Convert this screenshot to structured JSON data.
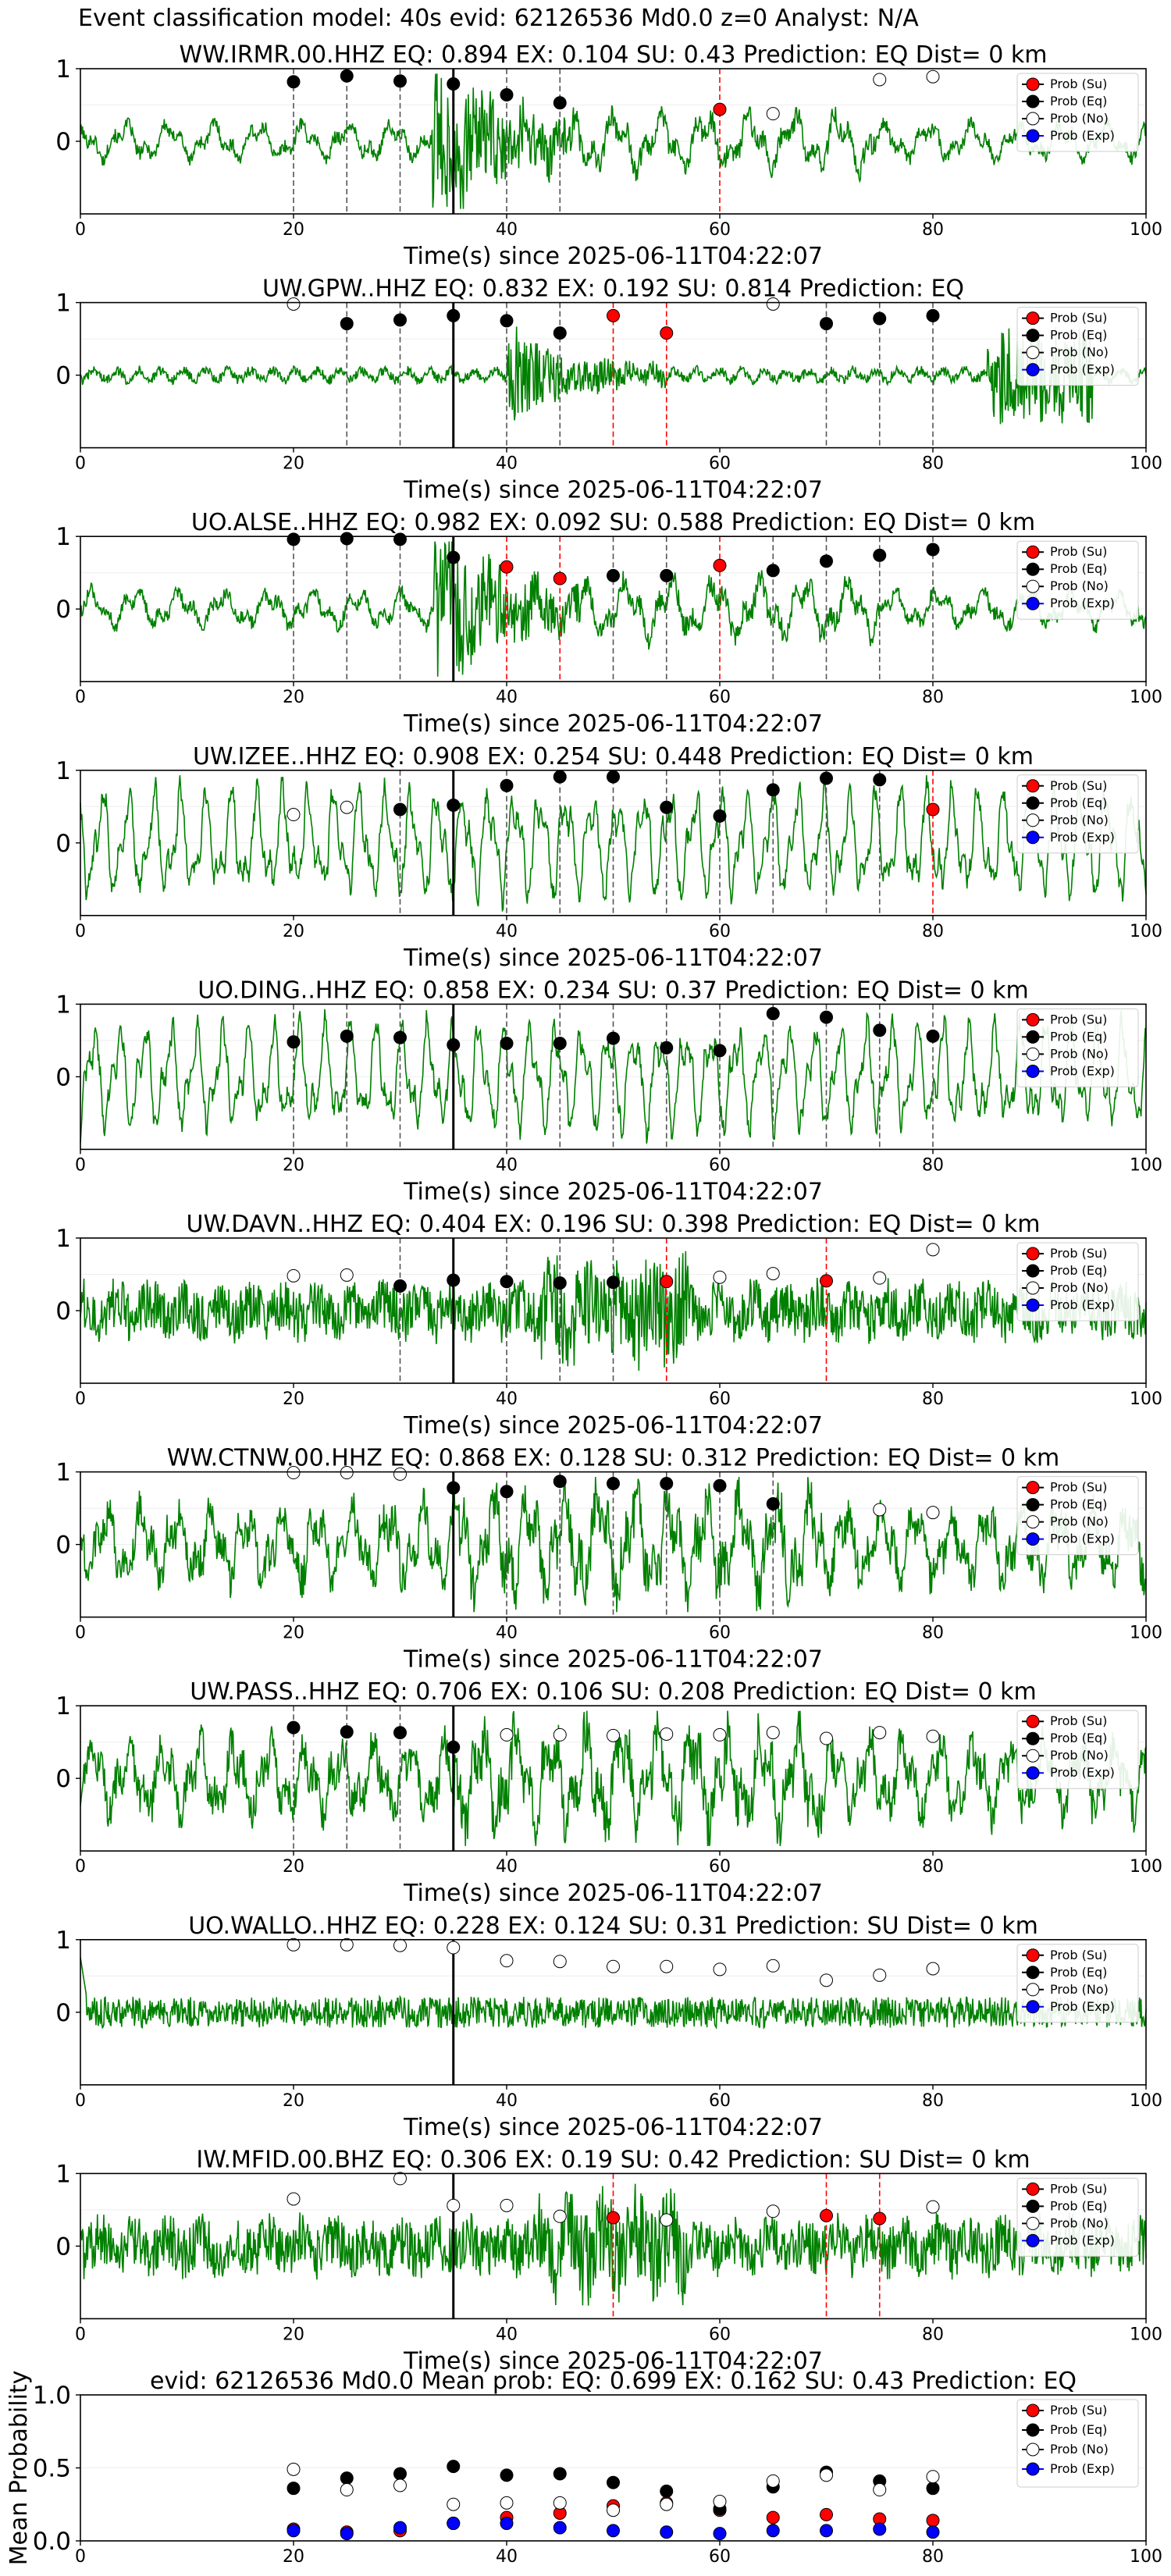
{
  "suptitle": "Event classification model: 40s evid: 62126536 Md0.0 z=0 Analyst: N/A",
  "colors": {
    "su": "#ff0000",
    "eq": "#000000",
    "no": "#ffffff",
    "exp": "#0000ff",
    "trace": "#008000",
    "dash_eq": "#555555",
    "dash_su": "#ff0000",
    "onset": "#000000"
  },
  "legend": [
    "Prob (Su)",
    "Prob (Eq)",
    "Prob (No)",
    "Prob (Exp)"
  ],
  "chart_data": [
    {
      "type": "line",
      "title": "WW.IRMR.00.HHZ   EQ: 0.894  EX: 0.104  SU: 0.43   Prediction: EQ    Dist= 0 km",
      "xlabel": "Time(s) since 2025-06-11T04:22:07",
      "ylabel": "",
      "xlim": [
        0,
        100
      ],
      "ylim": [
        -1,
        1
      ],
      "xticks": [
        0,
        20,
        40,
        60,
        80,
        100
      ],
      "yticks": [
        0,
        1
      ],
      "legend_position": "top-right",
      "onset": 35,
      "trace_style": "mixed_burst",
      "points": [
        {
          "x": 20,
          "p": 0.82,
          "c": "eq"
        },
        {
          "x": 25,
          "p": 0.9,
          "c": "eq"
        },
        {
          "x": 30,
          "p": 0.83,
          "c": "eq"
        },
        {
          "x": 35,
          "p": 0.79,
          "c": "eq"
        },
        {
          "x": 40,
          "p": 0.64,
          "c": "eq"
        },
        {
          "x": 45,
          "p": 0.53,
          "c": "eq"
        },
        {
          "x": 60,
          "p": 0.44,
          "c": "su"
        },
        {
          "x": 65,
          "p": 0.38,
          "c": "no"
        },
        {
          "x": 75,
          "p": 0.85,
          "c": "no"
        },
        {
          "x": 80,
          "p": 0.89,
          "c": "no"
        }
      ]
    },
    {
      "type": "line",
      "title": "UW.GPW..HHZ   EQ: 0.832  EX: 0.192  SU: 0.814   Prediction: EQ",
      "xlabel": "Time(s) since 2025-06-11T04:22:07",
      "ylabel": "",
      "xlim": [
        0,
        100
      ],
      "ylim": [
        -1,
        1
      ],
      "xticks": [
        0,
        20,
        40,
        60,
        80,
        100
      ],
      "yticks": [
        0,
        1
      ],
      "legend_position": "top-right",
      "onset": 35,
      "trace_style": "quiet_burst",
      "points": [
        {
          "x": 20,
          "p": 0.98,
          "c": "no"
        },
        {
          "x": 25,
          "p": 0.71,
          "c": "eq"
        },
        {
          "x": 30,
          "p": 0.76,
          "c": "eq"
        },
        {
          "x": 35,
          "p": 0.82,
          "c": "eq"
        },
        {
          "x": 40,
          "p": 0.75,
          "c": "eq"
        },
        {
          "x": 45,
          "p": 0.58,
          "c": "eq"
        },
        {
          "x": 50,
          "p": 0.82,
          "c": "su"
        },
        {
          "x": 55,
          "p": 0.58,
          "c": "su"
        },
        {
          "x": 65,
          "p": 0.98,
          "c": "no"
        },
        {
          "x": 70,
          "p": 0.71,
          "c": "eq"
        },
        {
          "x": 75,
          "p": 0.78,
          "c": "eq"
        },
        {
          "x": 80,
          "p": 0.82,
          "c": "eq"
        }
      ]
    },
    {
      "type": "line",
      "title": "UO.ALSE..HHZ   EQ: 0.982  EX: 0.092  SU: 0.588   Prediction: EQ    Dist= 0 km",
      "xlabel": "Time(s) since 2025-06-11T04:22:07",
      "ylabel": "",
      "xlim": [
        0,
        100
      ],
      "ylim": [
        -1,
        1
      ],
      "xticks": [
        0,
        20,
        40,
        60,
        80,
        100
      ],
      "yticks": [
        0,
        1
      ],
      "legend_position": "top-right",
      "onset": 35,
      "trace_style": "mixed_burst",
      "points": [
        {
          "x": 20,
          "p": 0.96,
          "c": "eq"
        },
        {
          "x": 25,
          "p": 0.97,
          "c": "eq"
        },
        {
          "x": 30,
          "p": 0.96,
          "c": "eq"
        },
        {
          "x": 35,
          "p": 0.71,
          "c": "eq"
        },
        {
          "x": 40,
          "p": 0.58,
          "c": "su"
        },
        {
          "x": 45,
          "p": 0.42,
          "c": "su"
        },
        {
          "x": 50,
          "p": 0.46,
          "c": "eq"
        },
        {
          "x": 55,
          "p": 0.46,
          "c": "eq"
        },
        {
          "x": 60,
          "p": 0.6,
          "c": "su"
        },
        {
          "x": 65,
          "p": 0.53,
          "c": "eq"
        },
        {
          "x": 70,
          "p": 0.66,
          "c": "eq"
        },
        {
          "x": 75,
          "p": 0.74,
          "c": "eq"
        },
        {
          "x": 80,
          "p": 0.82,
          "c": "eq"
        }
      ]
    },
    {
      "type": "line",
      "title": "UW.IZEE..HHZ   EQ: 0.908  EX: 0.254  SU: 0.448   Prediction: EQ    Dist= 0 km",
      "xlabel": "Time(s) since 2025-06-11T04:22:07",
      "ylabel": "",
      "xlim": [
        0,
        100
      ],
      "ylim": [
        -1,
        1
      ],
      "xticks": [
        0,
        20,
        40,
        60,
        80,
        100
      ],
      "yticks": [
        0,
        1
      ],
      "legend_position": "top-right",
      "onset": 35,
      "trace_style": "slow",
      "points": [
        {
          "x": 20,
          "p": 0.39,
          "c": "no"
        },
        {
          "x": 25,
          "p": 0.49,
          "c": "no"
        },
        {
          "x": 30,
          "p": 0.46,
          "c": "eq"
        },
        {
          "x": 35,
          "p": 0.52,
          "c": "eq"
        },
        {
          "x": 40,
          "p": 0.79,
          "c": "eq"
        },
        {
          "x": 45,
          "p": 0.91,
          "c": "eq"
        },
        {
          "x": 50,
          "p": 0.91,
          "c": "eq"
        },
        {
          "x": 55,
          "p": 0.49,
          "c": "eq"
        },
        {
          "x": 60,
          "p": 0.37,
          "c": "eq"
        },
        {
          "x": 65,
          "p": 0.73,
          "c": "eq"
        },
        {
          "x": 70,
          "p": 0.89,
          "c": "eq"
        },
        {
          "x": 75,
          "p": 0.87,
          "c": "eq"
        },
        {
          "x": 80,
          "p": 0.46,
          "c": "su"
        }
      ]
    },
    {
      "type": "line",
      "title": "UO.DING..HHZ   EQ: 0.858  EX: 0.234  SU: 0.37   Prediction: EQ    Dist= 0 km",
      "xlabel": "Time(s) since 2025-06-11T04:22:07",
      "ylabel": "",
      "xlim": [
        0,
        100
      ],
      "ylim": [
        -1,
        1
      ],
      "xticks": [
        0,
        20,
        40,
        60,
        80,
        100
      ],
      "yticks": [
        0,
        1
      ],
      "legend_position": "top-right",
      "onset": 35,
      "trace_style": "slow",
      "points": [
        {
          "x": 20,
          "p": 0.48,
          "c": "eq"
        },
        {
          "x": 25,
          "p": 0.56,
          "c": "eq"
        },
        {
          "x": 30,
          "p": 0.54,
          "c": "eq"
        },
        {
          "x": 35,
          "p": 0.44,
          "c": "eq"
        },
        {
          "x": 40,
          "p": 0.46,
          "c": "eq"
        },
        {
          "x": 45,
          "p": 0.46,
          "c": "eq"
        },
        {
          "x": 50,
          "p": 0.53,
          "c": "eq"
        },
        {
          "x": 55,
          "p": 0.4,
          "c": "eq"
        },
        {
          "x": 60,
          "p": 0.36,
          "c": "eq"
        },
        {
          "x": 65,
          "p": 0.87,
          "c": "eq"
        },
        {
          "x": 70,
          "p": 0.82,
          "c": "eq"
        },
        {
          "x": 75,
          "p": 0.64,
          "c": "eq"
        },
        {
          "x": 80,
          "p": 0.56,
          "c": "eq"
        }
      ]
    },
    {
      "type": "line",
      "title": "UW.DAVN..HHZ   EQ: 0.404  EX: 0.196  SU: 0.398   Prediction: EQ    Dist= 0 km",
      "xlabel": "Time(s) since 2025-06-11T04:22:07",
      "ylabel": "",
      "xlim": [
        0,
        100
      ],
      "ylim": [
        -1,
        1
      ],
      "xticks": [
        0,
        20,
        40,
        60,
        80,
        100
      ],
      "yticks": [
        0,
        1
      ],
      "legend_position": "top-right",
      "onset": 35,
      "trace_style": "noise",
      "points": [
        {
          "x": 20,
          "p": 0.48,
          "c": "no"
        },
        {
          "x": 25,
          "p": 0.49,
          "c": "no"
        },
        {
          "x": 30,
          "p": 0.34,
          "c": "eq"
        },
        {
          "x": 35,
          "p": 0.42,
          "c": "eq"
        },
        {
          "x": 40,
          "p": 0.4,
          "c": "eq"
        },
        {
          "x": 45,
          "p": 0.38,
          "c": "eq"
        },
        {
          "x": 50,
          "p": 0.39,
          "c": "eq"
        },
        {
          "x": 55,
          "p": 0.4,
          "c": "su"
        },
        {
          "x": 60,
          "p": 0.46,
          "c": "no"
        },
        {
          "x": 65,
          "p": 0.51,
          "c": "no"
        },
        {
          "x": 70,
          "p": 0.41,
          "c": "su"
        },
        {
          "x": 75,
          "p": 0.45,
          "c": "no"
        },
        {
          "x": 80,
          "p": 0.84,
          "c": "no"
        }
      ]
    },
    {
      "type": "line",
      "title": "WW.CTNW.00.HHZ   EQ: 0.868  EX: 0.128  SU: 0.312   Prediction: EQ    Dist= 0 km",
      "xlabel": "Time(s) since 2025-06-11T04:22:07",
      "ylabel": "",
      "xlim": [
        0,
        100
      ],
      "ylim": [
        -1,
        1
      ],
      "xticks": [
        0,
        20,
        40,
        60,
        80,
        100
      ],
      "yticks": [
        0,
        1
      ],
      "legend_position": "top-right",
      "onset": 35,
      "trace_style": "mixed",
      "points": [
        {
          "x": 20,
          "p": 0.99,
          "c": "no"
        },
        {
          "x": 25,
          "p": 0.99,
          "c": "no"
        },
        {
          "x": 30,
          "p": 0.97,
          "c": "no"
        },
        {
          "x": 35,
          "p": 0.78,
          "c": "eq"
        },
        {
          "x": 40,
          "p": 0.73,
          "c": "eq"
        },
        {
          "x": 45,
          "p": 0.87,
          "c": "eq"
        },
        {
          "x": 50,
          "p": 0.84,
          "c": "eq"
        },
        {
          "x": 55,
          "p": 0.84,
          "c": "eq"
        },
        {
          "x": 60,
          "p": 0.81,
          "c": "eq"
        },
        {
          "x": 65,
          "p": 0.56,
          "c": "eq"
        },
        {
          "x": 75,
          "p": 0.48,
          "c": "no"
        },
        {
          "x": 80,
          "p": 0.44,
          "c": "no"
        }
      ]
    },
    {
      "type": "line",
      "title": "UW.PASS..HHZ   EQ: 0.706  EX: 0.106  SU: 0.208   Prediction: EQ    Dist= 0 km",
      "xlabel": "Time(s) since 2025-06-11T04:22:07",
      "ylabel": "",
      "xlim": [
        0,
        100
      ],
      "ylim": [
        -1,
        1
      ],
      "xticks": [
        0,
        20,
        40,
        60,
        80,
        100
      ],
      "yticks": [
        0,
        1
      ],
      "legend_position": "top-right",
      "onset": 35,
      "trace_style": "mixed",
      "points": [
        {
          "x": 20,
          "p": 0.7,
          "c": "eq"
        },
        {
          "x": 25,
          "p": 0.64,
          "c": "eq"
        },
        {
          "x": 30,
          "p": 0.63,
          "c": "eq"
        },
        {
          "x": 35,
          "p": 0.43,
          "c": "eq"
        },
        {
          "x": 40,
          "p": 0.6,
          "c": "no"
        },
        {
          "x": 45,
          "p": 0.6,
          "c": "no"
        },
        {
          "x": 50,
          "p": 0.59,
          "c": "no"
        },
        {
          "x": 55,
          "p": 0.61,
          "c": "no"
        },
        {
          "x": 60,
          "p": 0.6,
          "c": "no"
        },
        {
          "x": 65,
          "p": 0.63,
          "c": "no"
        },
        {
          "x": 70,
          "p": 0.55,
          "c": "no"
        },
        {
          "x": 75,
          "p": 0.63,
          "c": "no"
        },
        {
          "x": 80,
          "p": 0.58,
          "c": "no"
        }
      ]
    },
    {
      "type": "line",
      "title": "UO.WALLO..HHZ   EQ: 0.228  EX: 0.124  SU: 0.31   Prediction: SU    Dist= 0 km",
      "xlabel": "Time(s) since 2025-06-11T04:22:07",
      "ylabel": "",
      "xlim": [
        0,
        100
      ],
      "ylim": [
        -1,
        1
      ],
      "xticks": [
        0,
        20,
        40,
        60,
        80,
        100
      ],
      "yticks": [
        0,
        1
      ],
      "legend_position": "top-right",
      "onset": 35,
      "trace_style": "lownoise",
      "points": [
        {
          "x": 20,
          "p": 0.93,
          "c": "no"
        },
        {
          "x": 25,
          "p": 0.93,
          "c": "no"
        },
        {
          "x": 30,
          "p": 0.92,
          "c": "no"
        },
        {
          "x": 35,
          "p": 0.89,
          "c": "no"
        },
        {
          "x": 40,
          "p": 0.71,
          "c": "no"
        },
        {
          "x": 45,
          "p": 0.7,
          "c": "no"
        },
        {
          "x": 50,
          "p": 0.63,
          "c": "no"
        },
        {
          "x": 55,
          "p": 0.63,
          "c": "no"
        },
        {
          "x": 60,
          "p": 0.59,
          "c": "no"
        },
        {
          "x": 65,
          "p": 0.64,
          "c": "no"
        },
        {
          "x": 70,
          "p": 0.44,
          "c": "no"
        },
        {
          "x": 75,
          "p": 0.51,
          "c": "no"
        },
        {
          "x": 80,
          "p": 0.6,
          "c": "no"
        }
      ]
    },
    {
      "type": "line",
      "title": "IW.MFID.00.BHZ   EQ: 0.306  EX: 0.19  SU: 0.42   Prediction: SU    Dist= 0 km",
      "xlabel": "Time(s) since 2025-06-11T04:22:07",
      "ylabel": "",
      "xlim": [
        0,
        100
      ],
      "ylim": [
        -1,
        1
      ],
      "xticks": [
        0,
        20,
        40,
        60,
        80,
        100
      ],
      "yticks": [
        0,
        1
      ],
      "legend_position": "top-right",
      "onset": 35,
      "trace_style": "noise",
      "points": [
        {
          "x": 20,
          "p": 0.65,
          "c": "no"
        },
        {
          "x": 30,
          "p": 0.93,
          "c": "no"
        },
        {
          "x": 35,
          "p": 0.56,
          "c": "no"
        },
        {
          "x": 40,
          "p": 0.56,
          "c": "no"
        },
        {
          "x": 45,
          "p": 0.41,
          "c": "no"
        },
        {
          "x": 50,
          "p": 0.39,
          "c": "su"
        },
        {
          "x": 55,
          "p": 0.36,
          "c": "no"
        },
        {
          "x": 65,
          "p": 0.48,
          "c": "no"
        },
        {
          "x": 70,
          "p": 0.42,
          "c": "su"
        },
        {
          "x": 75,
          "p": 0.38,
          "c": "su"
        },
        {
          "x": 80,
          "p": 0.54,
          "c": "no"
        }
      ]
    },
    {
      "type": "scatter",
      "title": "evid: 62126536  Md0.0   Mean prob:   EQ: 0.699  EX: 0.162  SU: 0.43   Prediction: EQ",
      "xlabel": "",
      "ylabel": "Mean Probability",
      "xlim": [
        0,
        100
      ],
      "ylim": [
        0,
        1
      ],
      "xticks": [
        0,
        20,
        40,
        60,
        80,
        100
      ],
      "yticks": [
        0.0,
        0.5,
        1.0
      ],
      "legend_position": "top-right",
      "x": [
        20,
        25,
        30,
        35,
        40,
        45,
        50,
        55,
        60,
        65,
        70,
        75,
        80
      ],
      "series": [
        {
          "name": "Prob (Su)",
          "c": "su",
          "values": [
            0.08,
            0.06,
            0.07,
            0.12,
            0.16,
            0.19,
            0.24,
            0.26,
            0.21,
            0.16,
            0.18,
            0.15,
            0.14
          ]
        },
        {
          "name": "Prob (Eq)",
          "c": "eq",
          "values": [
            0.36,
            0.43,
            0.46,
            0.51,
            0.45,
            0.46,
            0.4,
            0.34,
            0.22,
            0.37,
            0.47,
            0.41,
            0.36
          ]
        },
        {
          "name": "Prob (No)",
          "c": "no",
          "values": [
            0.49,
            0.35,
            0.38,
            0.25,
            0.26,
            0.26,
            0.21,
            0.25,
            0.27,
            0.41,
            0.45,
            0.35,
            0.44
          ]
        },
        {
          "name": "Prob (Exp)",
          "c": "exp",
          "values": [
            0.07,
            0.05,
            0.09,
            0.12,
            0.12,
            0.09,
            0.07,
            0.06,
            0.05,
            0.07,
            0.07,
            0.08,
            0.06
          ]
        }
      ]
    }
  ]
}
